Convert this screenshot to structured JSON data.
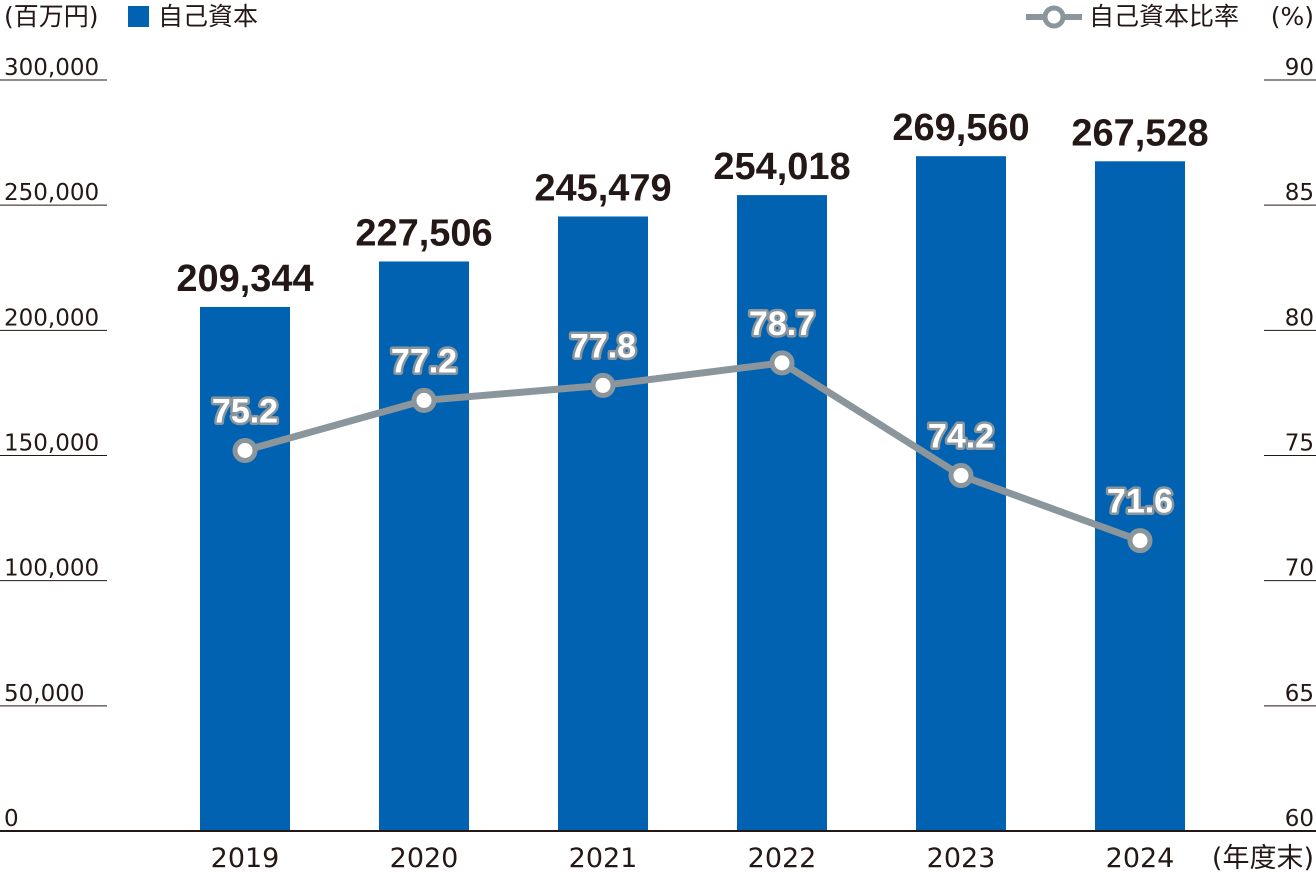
{
  "chart_data": {
    "type": "bar",
    "categories": [
      "2019",
      "2020",
      "2021",
      "2022",
      "2023",
      "2024"
    ],
    "series": [
      {
        "name": "自己資本",
        "type": "bar",
        "axis": "left",
        "values": [
          209344,
          227506,
          245479,
          254018,
          269560,
          267528
        ],
        "labels": [
          "209,344",
          "227,506",
          "245,479",
          "254,018",
          "269,560",
          "267,528"
        ]
      },
      {
        "name": "自己資本比率",
        "type": "line",
        "axis": "right",
        "values": [
          75.2,
          77.2,
          77.8,
          78.7,
          74.2,
          71.6
        ],
        "labels": [
          "75.2",
          "77.2",
          "77.8",
          "78.7",
          "74.2",
          "71.6"
        ]
      }
    ],
    "ylim_left": [
      0,
      300000
    ],
    "ylim_right": [
      60,
      90
    ],
    "yticks_left": [
      "0",
      "50,000",
      "100,000",
      "150,000",
      "200,000",
      "250,000",
      "300,000"
    ],
    "yticks_right": [
      "60",
      "65",
      "70",
      "75",
      "80",
      "85",
      "90"
    ],
    "ylabel_left": "(百万円)",
    "ylabel_right": "(%)",
    "xlabel": "(年度末)",
    "legend_placement": "top",
    "grid": false,
    "colors": {
      "bar": "#0062b1",
      "line": "#8b969c",
      "text": "#231815"
    }
  }
}
